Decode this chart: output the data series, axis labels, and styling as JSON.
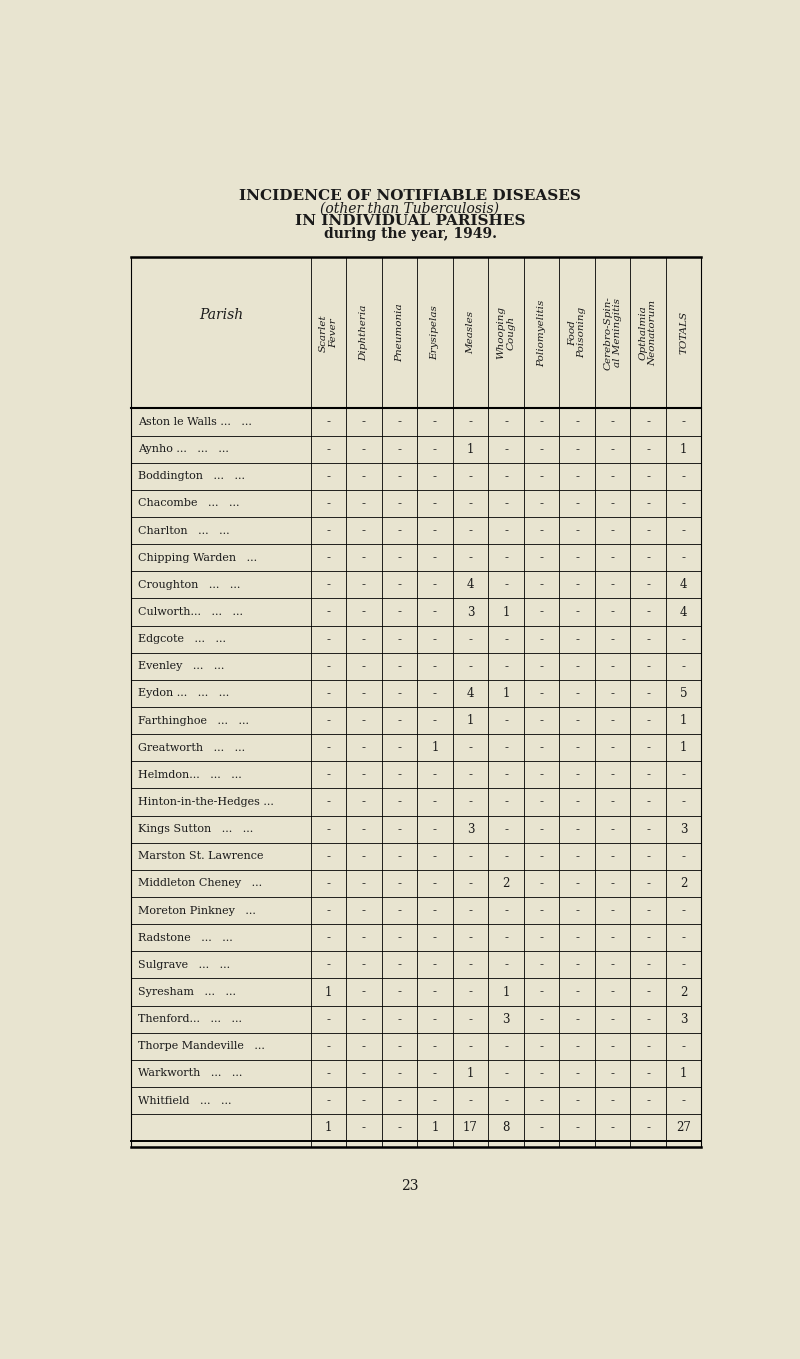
{
  "title1": "INCIDENCE OF NOTIFIABLE DISEASES",
  "title2": "(other than Tuberculosis)",
  "title3": "IN INDIVIDUAL PARISHES",
  "title4": "during the year, 1949.",
  "bg_color": "#e8e4d0",
  "col_headers": [
    "Scarlet\nFever",
    "Diphtheria",
    "Pneumonia",
    "Erysipelas",
    "Measles",
    "Whooping\nCough",
    "Poliomyelitis",
    "Food\nPoisoning",
    "Cerebro-Spin-\nal Meningitis",
    "Opthalmia\nNeonatorum",
    "TOTALS"
  ],
  "parish_display": [
    "Aston le Walls ...   ...",
    "Aynho ...   ...   ...",
    "Boddington   ...   ...",
    "Chacombe   ...   ...",
    "Charlton   ...   ...",
    "Chipping Warden   ...",
    "Croughton   ...   ...",
    "Culworth...   ...   ...",
    "Edgcote   ...   ...",
    "Evenley   ...   ...",
    "Eydon ...   ...   ...",
    "Farthinghoe   ...   ...",
    "Greatworth   ...   ...",
    "Helmdon...   ...   ...",
    "Hinton-in-the-Hedges ...",
    "Kings Sutton   ...   ...",
    "Marston St. Lawrence",
    "Middleton Cheney   ...",
    "Moreton Pinkney   ...",
    "Radstone   ...   ...",
    "Sulgrave   ...   ...",
    "Syresham   ...   ...",
    "Thenford...   ...   ...",
    "Thorpe Mandeville   ...",
    "Warkworth   ...   ...",
    "Whitfield   ...   ..."
  ],
  "data": [
    [
      "-",
      "-",
      "-",
      "-",
      "-",
      "-",
      "-",
      "-",
      "-",
      "-",
      "-"
    ],
    [
      "-",
      "-",
      "-",
      "-",
      "1",
      "-",
      "-",
      "-",
      "-",
      "-",
      "1"
    ],
    [
      "-",
      "-",
      "-",
      "-",
      "-",
      "-",
      "-",
      "-",
      "-",
      "-",
      "-"
    ],
    [
      "-",
      "-",
      "-",
      "-",
      "-",
      "-",
      "-",
      "-",
      "-",
      "-",
      "-"
    ],
    [
      "-",
      "-",
      "-",
      "-",
      "-",
      "-",
      "-",
      "-",
      "-",
      "-",
      "-"
    ],
    [
      "-",
      "-",
      "-",
      "-",
      "-",
      "-",
      "-",
      "-",
      "-",
      "-",
      "-"
    ],
    [
      "-",
      "-",
      "-",
      "-",
      "4",
      "-",
      "-",
      "-",
      "-",
      "-",
      "4"
    ],
    [
      "-",
      "-",
      "-",
      "-",
      "3",
      "1",
      "-",
      "-",
      "-",
      "-",
      "4"
    ],
    [
      "-",
      "-",
      "-",
      "-",
      "-",
      "-",
      "-",
      "-",
      "-",
      "-",
      "-"
    ],
    [
      "-",
      "-",
      "-",
      "-",
      "-",
      "-",
      "-",
      "-",
      "-",
      "-",
      "-"
    ],
    [
      "-",
      "-",
      "-",
      "-",
      "4",
      "1",
      "-",
      "-",
      "-",
      "-",
      "5"
    ],
    [
      "-",
      "-",
      "-",
      "-",
      "1",
      "-",
      "-",
      "-",
      "-",
      "-",
      "1"
    ],
    [
      "-",
      "-",
      "-",
      "1",
      "-",
      "-",
      "-",
      "-",
      "-",
      "-",
      "1"
    ],
    [
      "-",
      "-",
      "-",
      "-",
      "-",
      "-",
      "-",
      "-",
      "-",
      "-",
      "-"
    ],
    [
      "-",
      "-",
      "-",
      "-",
      "-",
      "-",
      "-",
      "-",
      "-",
      "-",
      "-"
    ],
    [
      "-",
      "-",
      "-",
      "-",
      "3",
      "-",
      "-",
      "-",
      "-",
      "-",
      "3"
    ],
    [
      "-",
      "-",
      "-",
      "-",
      "-",
      "-",
      "-",
      "-",
      "-",
      "-",
      "-"
    ],
    [
      "-",
      "-",
      "-",
      "-",
      "-",
      "2",
      "-",
      "-",
      "-",
      "-",
      "2"
    ],
    [
      "-",
      "-",
      "-",
      "-",
      "-",
      "-",
      "-",
      "-",
      "-",
      "-",
      "-"
    ],
    [
      "-",
      "-",
      "-",
      "-",
      "-",
      "-",
      "-",
      "-",
      "-",
      "-",
      "-"
    ],
    [
      "-",
      "-",
      "-",
      "-",
      "-",
      "-",
      "-",
      "-",
      "-",
      "-",
      "-"
    ],
    [
      "1",
      "-",
      "-",
      "-",
      "-",
      "1",
      "-",
      "-",
      "-",
      "-",
      "2"
    ],
    [
      "-",
      "-",
      "-",
      "-",
      "-",
      "3",
      "-",
      "-",
      "-",
      "-",
      "3"
    ],
    [
      "-",
      "-",
      "-",
      "-",
      "-",
      "-",
      "-",
      "-",
      "-",
      "-",
      "-"
    ],
    [
      "-",
      "-",
      "-",
      "-",
      "1",
      "-",
      "-",
      "-",
      "-",
      "-",
      "1"
    ],
    [
      "-",
      "-",
      "-",
      "-",
      "-",
      "-",
      "-",
      "-",
      "-",
      "-",
      "-"
    ]
  ],
  "totals_row": [
    "1",
    "-",
    "-",
    "1",
    "17",
    "8",
    "-",
    "-",
    "-",
    "-",
    "27"
  ],
  "page_number": "23"
}
